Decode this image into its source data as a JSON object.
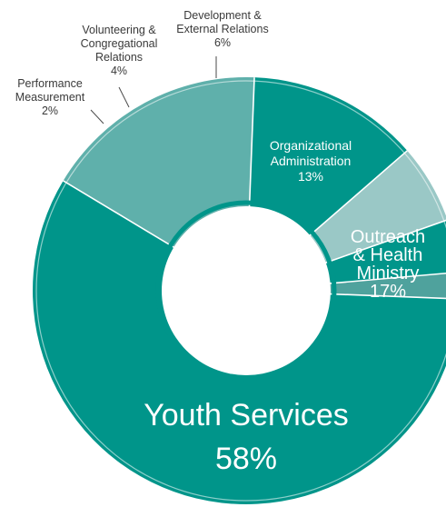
{
  "chart_data": {
    "type": "pie",
    "style": "donut",
    "slices": [
      {
        "label": "Youth Services",
        "value": 58,
        "value_text": "58%",
        "color": "#00958a"
      },
      {
        "label": "Performance Measurement",
        "value": 2,
        "value_text": "2%",
        "color": "#4fa29d"
      },
      {
        "label": "Volunteering & Congregational Relations",
        "value": 4,
        "value_text": "4%",
        "color": "#00958a"
      },
      {
        "label": "Development & External Relations",
        "value": 6,
        "value_text": "6%",
        "color": "#9ac8c6"
      },
      {
        "label": "Organizational Administration",
        "value": 13,
        "value_text": "13%",
        "color": "#00958a"
      },
      {
        "label": "Outreach & Health Ministry",
        "value": 17,
        "value_text": "17%",
        "color": "#5fb0ab"
      }
    ],
    "label_lines": {
      "Youth Services": [
        "Youth Services"
      ],
      "Performance Measurement": [
        "Performance",
        "Measurement"
      ],
      "Volunteering & Congregational Relations": [
        "Volunteering &",
        "Congregational",
        "Relations"
      ],
      "Development & External Relations": [
        "Development &",
        "External Relations"
      ],
      "Organizational Administration": [
        "Organizational",
        "Administration"
      ],
      "Outreach & Health Ministry": [
        "Outreach",
        "& Health",
        "Ministry"
      ]
    },
    "separator_color": "#ffffff",
    "inner_ring_color": "#00958a"
  }
}
